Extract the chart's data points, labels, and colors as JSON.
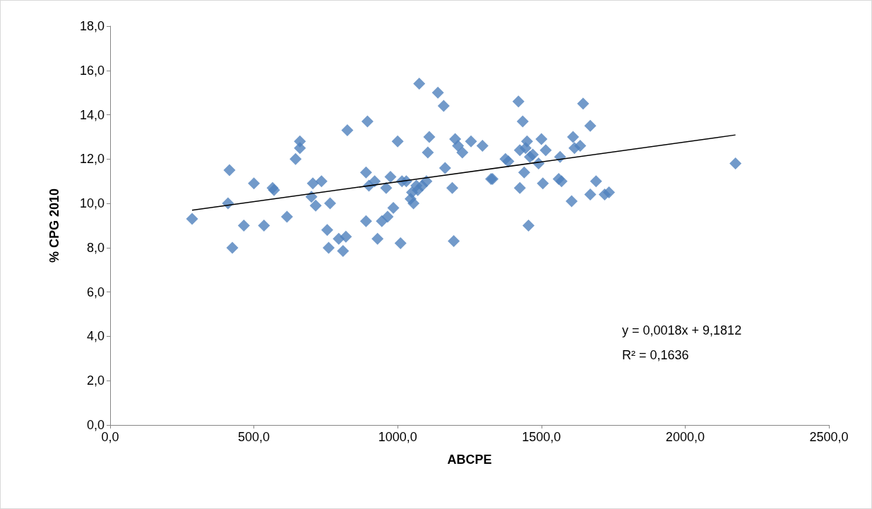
{
  "chart_data": {
    "type": "scatter",
    "xlabel": "ABCPE",
    "ylabel": "% CPG 2010",
    "xlim": [
      0,
      2500
    ],
    "xticks": [
      {
        "value": 0,
        "label": "0,0"
      },
      {
        "value": 500,
        "label": "500,0"
      },
      {
        "value": 1000,
        "label": "1000,0"
      },
      {
        "value": 1500,
        "label": "1500,0"
      },
      {
        "value": 2000,
        "label": "2000,0"
      },
      {
        "value": 2500,
        "label": "2500,0"
      }
    ],
    "ylim": [
      0,
      18
    ],
    "yticks": [
      {
        "value": 0,
        "label": "0,0"
      },
      {
        "value": 2,
        "label": "2,0"
      },
      {
        "value": 4,
        "label": "4,0"
      },
      {
        "value": 6,
        "label": "6,0"
      },
      {
        "value": 8,
        "label": "8,0"
      },
      {
        "value": 10,
        "label": "10,0"
      },
      {
        "value": 12,
        "label": "12,0"
      },
      {
        "value": 14,
        "label": "14,0"
      },
      {
        "value": 16,
        "label": "16,0"
      },
      {
        "value": 18,
        "label": "18,0"
      }
    ],
    "grid": false,
    "marker": "diamond",
    "annotations": [
      "y = 0,0018x + 9,1812",
      "R² = 0,1636"
    ],
    "series": [
      {
        "color": "#4f81bd",
        "x": [
          285,
          410,
          415,
          425,
          465,
          500,
          535,
          565,
          570,
          615,
          645,
          660,
          660,
          700,
          705,
          715,
          735,
          755,
          760,
          765,
          795,
          810,
          820,
          825,
          890,
          890,
          895,
          900,
          920,
          930,
          945,
          960,
          965,
          975,
          985,
          1000,
          1010,
          1015,
          1030,
          1045,
          1050,
          1055,
          1065,
          1070,
          1075,
          1085,
          1100,
          1105,
          1110,
          1140,
          1160,
          1165,
          1190,
          1195,
          1200,
          1210,
          1225,
          1255,
          1295,
          1325,
          1330,
          1375,
          1385,
          1420,
          1425,
          1425,
          1435,
          1440,
          1445,
          1450,
          1455,
          1460,
          1470,
          1490,
          1500,
          1505,
          1515,
          1560,
          1565,
          1570,
          1605,
          1610,
          1615,
          1635,
          1645,
          1670,
          1670,
          1690,
          1720,
          1735,
          2175
        ],
        "values": [
          9.3,
          10.0,
          11.5,
          8.0,
          9.0,
          10.9,
          9.0,
          10.7,
          10.6,
          9.4,
          12.0,
          12.8,
          12.5,
          10.3,
          10.9,
          9.9,
          11.0,
          8.8,
          8.0,
          10.0,
          8.4,
          7.85,
          8.5,
          13.3,
          11.4,
          9.2,
          13.7,
          10.8,
          11.0,
          8.4,
          9.2,
          10.7,
          9.4,
          11.2,
          9.8,
          12.8,
          8.2,
          11.0,
          11.0,
          10.2,
          10.5,
          10.0,
          10.8,
          10.6,
          15.4,
          10.8,
          11.0,
          12.3,
          13.0,
          15.0,
          14.4,
          11.6,
          10.7,
          8.3,
          12.9,
          12.6,
          12.3,
          12.8,
          12.6,
          11.1,
          11.1,
          12.0,
          11.9,
          14.6,
          12.4,
          10.7,
          13.7,
          11.4,
          12.5,
          12.8,
          9.0,
          12.1,
          12.2,
          11.8,
          12.9,
          10.9,
          12.4,
          11.1,
          12.1,
          11.0,
          10.1,
          13.0,
          12.5,
          12.6,
          14.5,
          13.5,
          10.4,
          11.0,
          10.4,
          10.5,
          11.8
        ]
      },
      {
        "type": "line",
        "color": "#000000",
        "marker": "none",
        "x": [
          285,
          2175
        ],
        "values": [
          9.69,
          13.09
        ]
      }
    ]
  }
}
